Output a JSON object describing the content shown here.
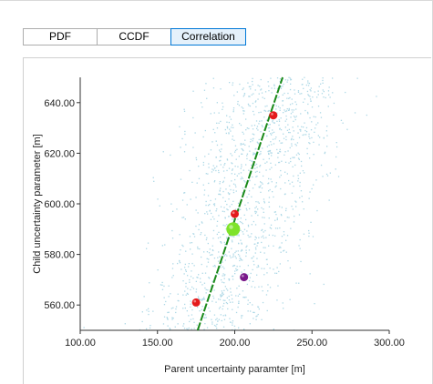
{
  "tabs": [
    {
      "label": "PDF",
      "active": false
    },
    {
      "label": "CCDF",
      "active": false
    },
    {
      "label": "Correlation",
      "active": true
    }
  ],
  "chart_data": {
    "type": "scatter",
    "xlabel": "Parent uncertainty paramter [m]",
    "ylabel": "Child uncertainty parameter [m]",
    "xlim": [
      100,
      300
    ],
    "ylim": [
      550,
      650
    ],
    "x_ticks": [
      100,
      150,
      200,
      250,
      300
    ],
    "x_tick_labels": [
      "100.00",
      "150.00",
      "200.00",
      "250.00",
      "300.00"
    ],
    "y_ticks": [
      560,
      580,
      600,
      620,
      640
    ],
    "y_tick_labels": [
      "560.00",
      "580.00",
      "600.00",
      "620.00",
      "640.00"
    ],
    "grid": false,
    "background_points": {
      "color": "#add8e6",
      "count": 1400,
      "trend": {
        "center_x": 200,
        "center_y": 590,
        "slope": 1.85
      },
      "x_spread": 22
    },
    "trend_line": {
      "color": "#1a8a1a",
      "x": [
        176,
        231
      ],
      "y": [
        550,
        650
      ]
    },
    "highlight_points": [
      {
        "x": 225,
        "y": 635,
        "color": "#e41a1c",
        "size": "small"
      },
      {
        "x": 200,
        "y": 596,
        "color": "#e41a1c",
        "size": "small"
      },
      {
        "x": 175,
        "y": 561,
        "color": "#e41a1c",
        "size": "small"
      },
      {
        "x": 199,
        "y": 590,
        "color": "#7fe32a",
        "size": "large"
      },
      {
        "x": 206,
        "y": 571,
        "color": "#7a1a8a",
        "size": "small"
      }
    ]
  }
}
